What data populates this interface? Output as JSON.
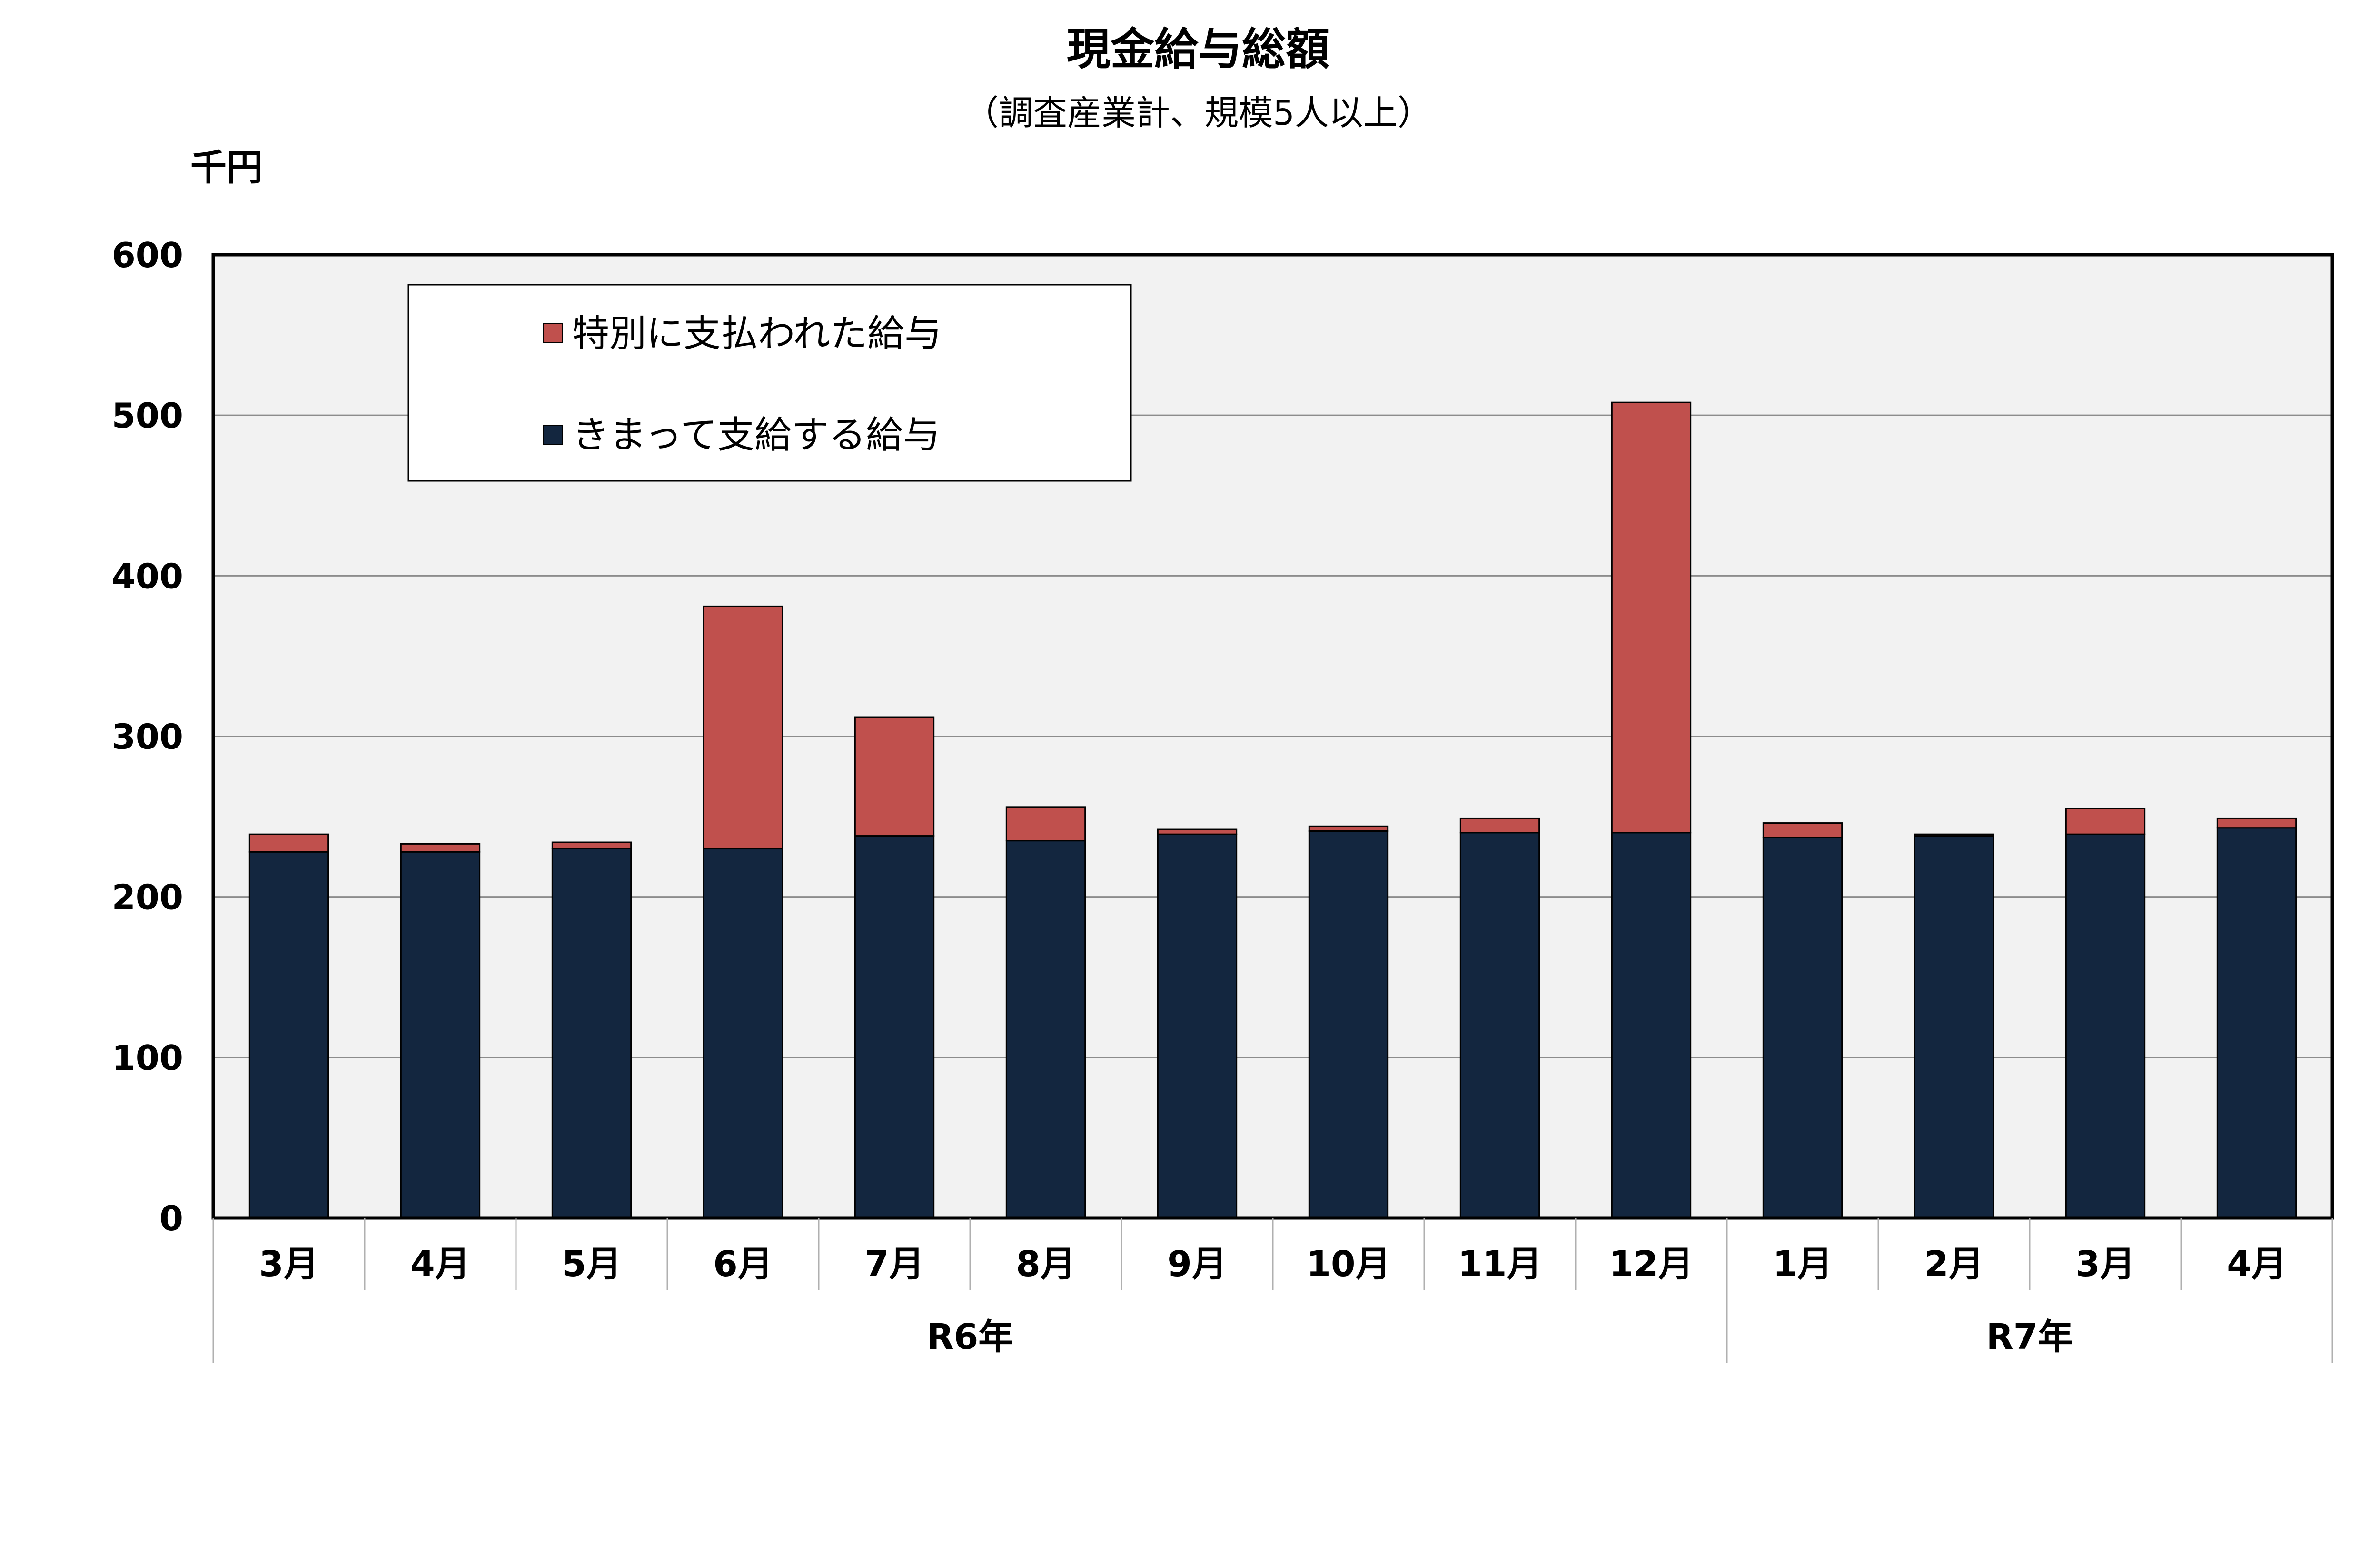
{
  "chart_data": {
    "type": "bar",
    "stacked": true,
    "title": "現金給与総額",
    "subtitle": "（調査産業計、規模5人以上）",
    "ylabel": "千円",
    "ylim": [
      0,
      600
    ],
    "yticks": [
      0,
      100,
      200,
      300,
      400,
      500,
      600
    ],
    "grid": true,
    "legend_position": "top-left",
    "categories": [
      "3月",
      "4月",
      "5月",
      "6月",
      "7月",
      "8月",
      "9月",
      "10月",
      "11月",
      "12月",
      "1月",
      "2月",
      "3月",
      "4月"
    ],
    "groups": [
      {
        "label": "R6年",
        "start": 0,
        "end": 9
      },
      {
        "label": "R7年",
        "start": 10,
        "end": 13
      }
    ],
    "series": [
      {
        "name": "きまって支給する給与",
        "color": "#13263f",
        "values": [
          228,
          228,
          230,
          230,
          238,
          235,
          239,
          241,
          240,
          240,
          237,
          238,
          239,
          243
        ]
      },
      {
        "name": "特別に支払われた給与",
        "color": "#c0504d",
        "values": [
          11,
          5,
          4,
          151,
          74,
          21,
          3,
          3,
          9,
          268,
          9,
          1,
          16,
          6
        ]
      }
    ],
    "legend_order": [
      1,
      0
    ]
  },
  "colors": {
    "plot_background": "#f2f2f2",
    "gridline": "#8c8c8c",
    "axis": "#000000"
  }
}
